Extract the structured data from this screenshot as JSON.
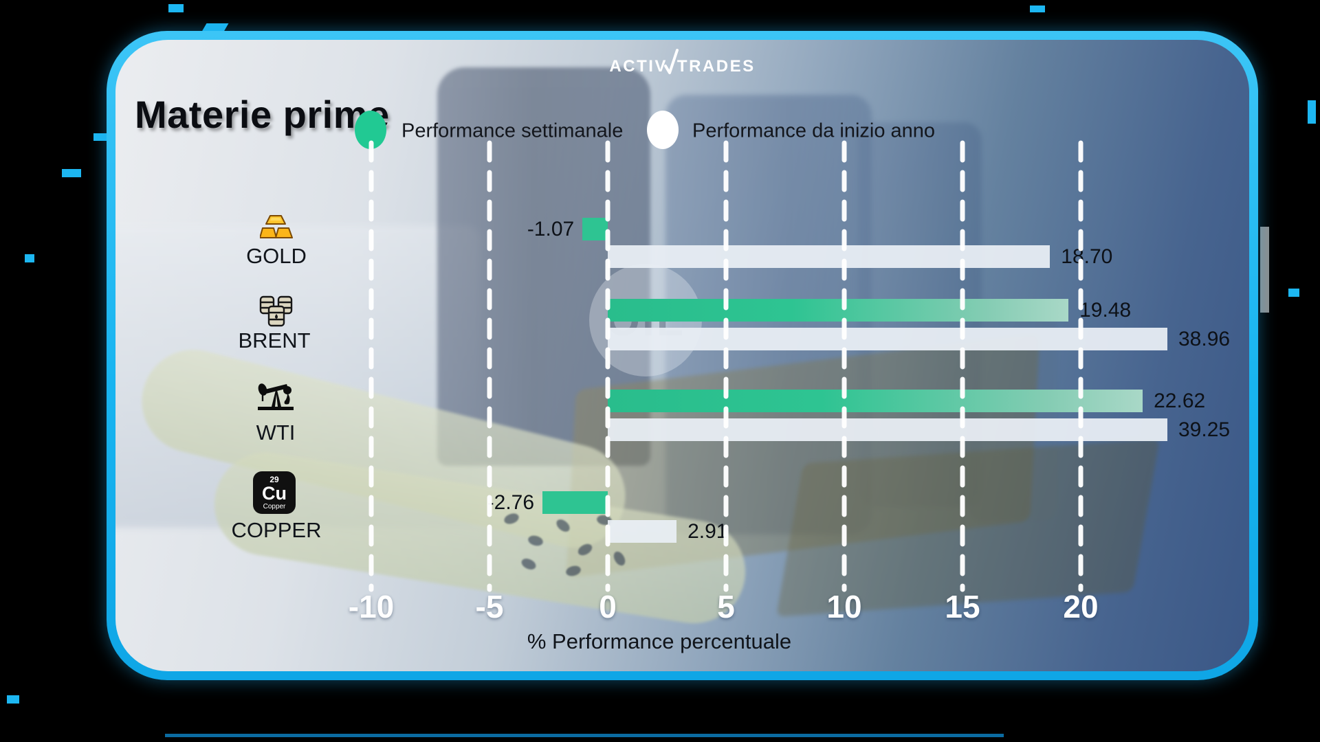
{
  "brand": {
    "logo_part1": "Activ",
    "logo_part2": "Trades"
  },
  "header": {
    "title": "Materie prime"
  },
  "legend": {
    "items": [
      {
        "label": "Performance settimanale",
        "color": "#2ec492"
      },
      {
        "label": "Performance da inizio anno",
        "color": "#ffffff"
      }
    ]
  },
  "watermark": {
    "text": "OIL"
  },
  "icons": {
    "copper": {
      "number": "29",
      "symbol": "Cu",
      "name": "Copper"
    }
  },
  "chart_data": {
    "type": "bar",
    "orientation": "horizontal",
    "title": "Materie prime",
    "categories": [
      "GOLD",
      "BRENT",
      "WTI",
      "COPPER"
    ],
    "series": [
      {
        "name": "Performance settimanale",
        "color": "#2ec492",
        "values": [
          -1.07,
          19.48,
          22.62,
          -2.76
        ]
      },
      {
        "name": "Performance da inizio anno",
        "color": "#e9eef4",
        "values": [
          18.7,
          38.96,
          39.25,
          2.91
        ]
      }
    ],
    "value_labels": [
      [
        "-1.07",
        "18.70"
      ],
      [
        "19.48",
        "38.96"
      ],
      [
        "22.62",
        "39.25"
      ],
      [
        "-2.76",
        "2.91"
      ]
    ],
    "x_ticks": [
      -10,
      -5,
      0,
      5,
      10,
      15,
      20
    ],
    "xlim": [
      -12.5,
      23.7
    ],
    "xlabel": "% Performance percentuale",
    "grid": "vertical-dashed-white",
    "legend_position": "top",
    "bars_clipped_at_right_edge": true
  },
  "colors": {
    "border_cyan": "#1db7f2",
    "bar_green": "#2ec492",
    "bar_white": "#e9eef4",
    "grid_white": "#ffffff",
    "background_outer": "#000000"
  }
}
